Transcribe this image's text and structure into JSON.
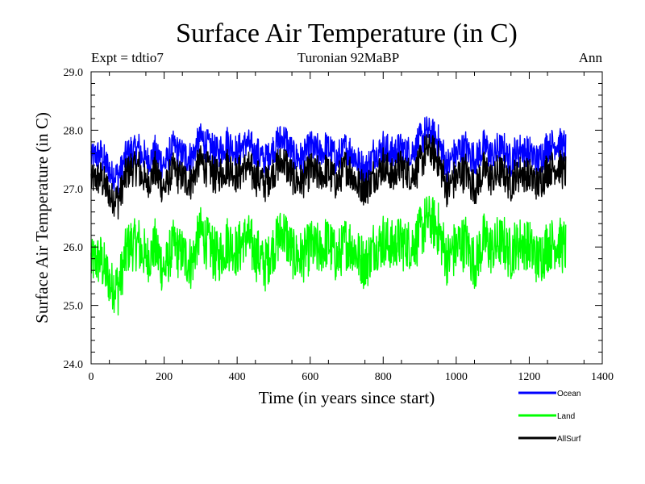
{
  "chart_data": {
    "type": "line",
    "title": "Surface Air Temperature (in C)",
    "subtitle_left": "Expt = tdtio7",
    "subtitle_center": "Turonian  92MaBP",
    "subtitle_right": "Ann",
    "xlabel": "Time (in years since start)",
    "ylabel": "Surface Air Temperature (in C)",
    "xlim": [
      0,
      1400
    ],
    "ylim": [
      24.0,
      29.0
    ],
    "x_ticks": [
      0,
      200,
      400,
      600,
      800,
      1000,
      1200,
      1400
    ],
    "x_tick_labels": [
      "0",
      "200",
      "400",
      "600",
      "800",
      "1000",
      "1200",
      "1400"
    ],
    "y_ticks": [
      24.0,
      25.0,
      26.0,
      27.0,
      28.0,
      29.0
    ],
    "y_tick_labels": [
      "24.0",
      "25.0",
      "26.0",
      "27.0",
      "28.0",
      "29.0"
    ],
    "legend_position": "bottom-right",
    "series": [
      {
        "name": "Ocean",
        "color": "#0000ff",
        "x": [
          0,
          25,
          50,
          75,
          100,
          125,
          150,
          175,
          200,
          225,
          250,
          275,
          300,
          325,
          350,
          375,
          400,
          425,
          450,
          475,
          500,
          525,
          550,
          575,
          600,
          625,
          650,
          675,
          700,
          725,
          750,
          775,
          800,
          825,
          850,
          875,
          900,
          925,
          950,
          975,
          1000,
          1025,
          1050,
          1075,
          1100,
          1125,
          1150,
          1175,
          1200,
          1225,
          1250,
          1275,
          1300
        ],
        "values": [
          27.5,
          27.6,
          27.3,
          27.2,
          27.6,
          27.7,
          27.5,
          27.6,
          27.4,
          27.7,
          27.6,
          27.5,
          27.9,
          27.7,
          27.6,
          27.8,
          27.6,
          27.8,
          27.6,
          27.5,
          27.7,
          27.9,
          27.6,
          27.5,
          27.7,
          27.6,
          27.7,
          27.5,
          27.7,
          27.5,
          27.3,
          27.6,
          27.7,
          27.6,
          27.7,
          27.6,
          27.8,
          28.0,
          27.8,
          27.4,
          27.6,
          27.7,
          27.5,
          27.7,
          27.6,
          27.7,
          27.5,
          27.7,
          27.6,
          27.5,
          27.7,
          27.8,
          27.7
        ]
      },
      {
        "name": "Land",
        "color": "#00ff00",
        "x": [
          0,
          25,
          50,
          75,
          100,
          125,
          150,
          175,
          200,
          225,
          250,
          275,
          300,
          325,
          350,
          375,
          400,
          425,
          450,
          475,
          500,
          525,
          550,
          575,
          600,
          625,
          650,
          675,
          700,
          725,
          750,
          775,
          800,
          825,
          850,
          875,
          900,
          925,
          950,
          975,
          1000,
          1025,
          1050,
          1075,
          1100,
          1125,
          1150,
          1175,
          1200,
          1225,
          1250,
          1275,
          1300
        ],
        "values": [
          25.7,
          25.8,
          25.4,
          25.3,
          26.0,
          26.1,
          25.8,
          26.0,
          25.6,
          26.0,
          25.9,
          25.7,
          26.3,
          26.0,
          25.8,
          26.1,
          25.9,
          26.2,
          25.9,
          25.7,
          26.0,
          26.3,
          25.9,
          25.8,
          26.0,
          25.9,
          26.1,
          25.8,
          26.1,
          25.9,
          25.7,
          26.0,
          26.1,
          26.0,
          26.1,
          26.0,
          26.2,
          26.5,
          26.3,
          25.8,
          26.0,
          26.1,
          25.7,
          26.1,
          26.0,
          26.1,
          25.9,
          26.1,
          26.0,
          25.8,
          26.0,
          26.1,
          26.0
        ]
      },
      {
        "name": "AllSurf",
        "color": "#000000",
        "x": [
          0,
          25,
          50,
          75,
          100,
          125,
          150,
          175,
          200,
          225,
          250,
          275,
          300,
          325,
          350,
          375,
          400,
          425,
          450,
          475,
          500,
          525,
          550,
          575,
          600,
          625,
          650,
          675,
          700,
          725,
          750,
          775,
          800,
          825,
          850,
          875,
          900,
          925,
          950,
          975,
          1000,
          1025,
          1050,
          1075,
          1100,
          1125,
          1150,
          1175,
          1200,
          1225,
          1250,
          1275,
          1300
        ],
        "values": [
          27.1,
          27.2,
          26.9,
          26.8,
          27.3,
          27.4,
          27.1,
          27.3,
          27.0,
          27.3,
          27.2,
          27.1,
          27.5,
          27.3,
          27.2,
          27.4,
          27.2,
          27.4,
          27.2,
          27.1,
          27.3,
          27.5,
          27.2,
          27.1,
          27.3,
          27.2,
          27.3,
          27.1,
          27.4,
          27.1,
          27.0,
          27.2,
          27.4,
          27.2,
          27.4,
          27.2,
          27.4,
          27.7,
          27.5,
          27.0,
          27.2,
          27.3,
          27.0,
          27.3,
          27.2,
          27.3,
          27.1,
          27.3,
          27.2,
          27.1,
          27.3,
          27.4,
          27.3
        ]
      }
    ]
  }
}
